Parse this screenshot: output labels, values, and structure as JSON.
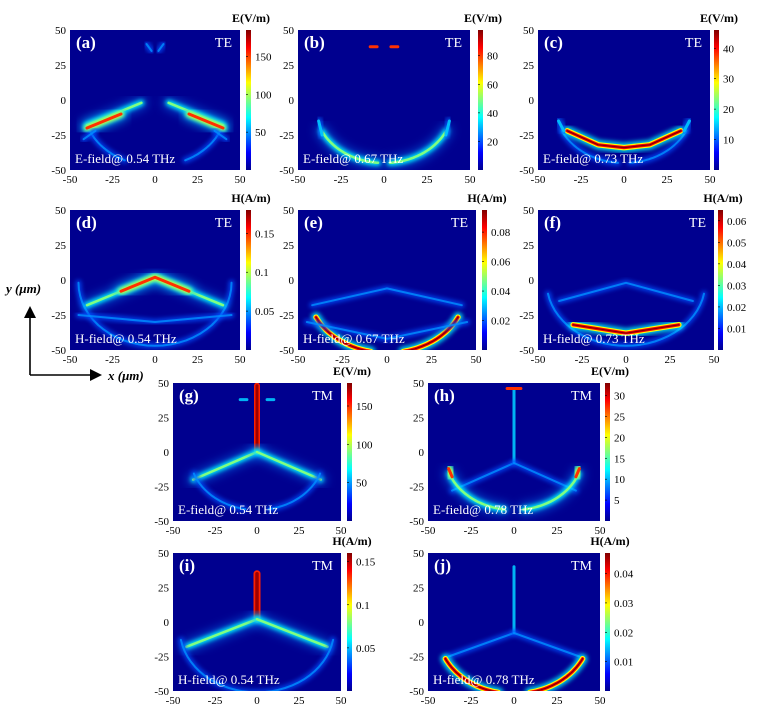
{
  "figure": {
    "axis_arrows": {
      "x_label": "x (μm)",
      "y_label": "y (μm)"
    },
    "colormap": [
      "#00008f",
      "#0000ff",
      "#0080ff",
      "#00ffff",
      "#80ff80",
      "#ffff00",
      "#ff8000",
      "#ff0000",
      "#800000"
    ]
  },
  "chart_data": [
    {
      "type": "heatmap",
      "panel": "(a)",
      "mode": "TE",
      "annotation": "E-field@ 0.54 THz",
      "colorbar_title": "E(V/m)",
      "colorbar_ticks": [
        "150",
        "100",
        "50"
      ],
      "colorbar_range": [
        0,
        185
      ],
      "xlim": [
        -50,
        50
      ],
      "ylim": [
        -50,
        50
      ],
      "x_ticks": [
        "-50",
        "-25",
        "0",
        "25",
        "50"
      ],
      "y_ticks": [
        "50",
        "25",
        "0",
        "-25",
        "-50"
      ],
      "pattern": "E054TE"
    },
    {
      "type": "heatmap",
      "panel": "(b)",
      "mode": "TE",
      "annotation": "E-field@ 0.67 THz",
      "colorbar_title": "E(V/m)",
      "colorbar_ticks": [
        "80",
        "60",
        "40",
        "20"
      ],
      "colorbar_range": [
        0,
        98
      ],
      "xlim": [
        -50,
        50
      ],
      "ylim": [
        -50,
        50
      ],
      "x_ticks": [
        "-50",
        "-25",
        "0",
        "25",
        "50"
      ],
      "y_ticks": [
        "50",
        "25",
        "0",
        "-25",
        "-50"
      ],
      "pattern": "E067TE"
    },
    {
      "type": "heatmap",
      "panel": "(c)",
      "mode": "TE",
      "annotation": "E-field@ 0.73 THz",
      "colorbar_title": "E(V/m)",
      "colorbar_ticks": [
        "40",
        "30",
        "20",
        "10"
      ],
      "colorbar_range": [
        0,
        46
      ],
      "xlim": [
        -50,
        50
      ],
      "ylim": [
        -50,
        50
      ],
      "x_ticks": [
        "-50",
        "-25",
        "0",
        "25",
        "50"
      ],
      "y_ticks": [
        "50",
        "25",
        "0",
        "-25",
        "-50"
      ],
      "pattern": "E073TE"
    },
    {
      "type": "heatmap",
      "panel": "(d)",
      "mode": "TE",
      "annotation": "H-field@ 0.54 THz",
      "colorbar_title": "H(A/m)",
      "colorbar_ticks": [
        "0.15",
        "0.1",
        "0.05"
      ],
      "colorbar_range": [
        0,
        0.18
      ],
      "xlim": [
        -50,
        50
      ],
      "ylim": [
        -50,
        50
      ],
      "x_ticks": [
        "-50",
        "-25",
        "0",
        "25",
        "50"
      ],
      "y_ticks": [
        "50",
        "25",
        "0",
        "-25",
        "-50"
      ],
      "pattern": "H054TE"
    },
    {
      "type": "heatmap",
      "panel": "(e)",
      "mode": "TE",
      "annotation": "H-field@ 0.67 THz",
      "colorbar_title": "H(A/m)",
      "colorbar_ticks": [
        "0.08",
        "0.06",
        "0.04",
        "0.02"
      ],
      "colorbar_range": [
        0,
        0.095
      ],
      "xlim": [
        -50,
        50
      ],
      "ylim": [
        -50,
        50
      ],
      "x_ticks": [
        "-50",
        "-25",
        "0",
        "25",
        "50"
      ],
      "y_ticks": [
        "50",
        "25",
        "0",
        "-25",
        "-50"
      ],
      "pattern": "H067TE"
    },
    {
      "type": "heatmap",
      "panel": "(f)",
      "mode": "TE",
      "annotation": "H-field@ 0.73 THz",
      "colorbar_title": "H(A/m)",
      "colorbar_ticks": [
        "0.06",
        "0.05",
        "0.04",
        "0.03",
        "0.02",
        "0.01"
      ],
      "colorbar_range": [
        0,
        0.065
      ],
      "xlim": [
        -50,
        50
      ],
      "ylim": [
        -50,
        50
      ],
      "x_ticks": [
        "-50",
        "-25",
        "0",
        "25",
        "50"
      ],
      "y_ticks": [
        "50",
        "25",
        "0",
        "-25",
        "-50"
      ],
      "pattern": "H073TE"
    },
    {
      "type": "heatmap",
      "panel": "(g)",
      "mode": "TM",
      "annotation": "E-field@ 0.54 THz",
      "colorbar_title": "E(V/m)",
      "colorbar_ticks": [
        "150",
        "100",
        "50"
      ],
      "colorbar_range": [
        0,
        180
      ],
      "xlim": [
        -50,
        50
      ],
      "ylim": [
        -50,
        50
      ],
      "x_ticks": [
        "-50",
        "-25",
        "0",
        "25",
        "50"
      ],
      "y_ticks": [
        "50",
        "25",
        "0",
        "-25",
        "-50"
      ],
      "pattern": "E054TM"
    },
    {
      "type": "heatmap",
      "panel": "(h)",
      "mode": "TM",
      "annotation": "E-field@ 0.78 THz",
      "colorbar_title": "E(V/m)",
      "colorbar_ticks": [
        "30",
        "25",
        "20",
        "15",
        "10",
        "5"
      ],
      "colorbar_range": [
        0,
        33
      ],
      "xlim": [
        -50,
        50
      ],
      "ylim": [
        -50,
        50
      ],
      "x_ticks": [
        "-50",
        "-25",
        "0",
        "25",
        "50"
      ],
      "y_ticks": [
        "50",
        "25",
        "0",
        "-25",
        "-50"
      ],
      "pattern": "E078TM"
    },
    {
      "type": "heatmap",
      "panel": "(i)",
      "mode": "TM",
      "annotation": "H-field@ 0.54 THz",
      "colorbar_title": "H(A/m)",
      "colorbar_ticks": [
        "0.15",
        "0.1",
        "0.05"
      ],
      "colorbar_range": [
        0,
        0.16
      ],
      "xlim": [
        -50,
        50
      ],
      "ylim": [
        -50,
        50
      ],
      "x_ticks": [
        "-50",
        "-25",
        "0",
        "25",
        "50"
      ],
      "y_ticks": [
        "50",
        "25",
        "0",
        "-25",
        "-50"
      ],
      "pattern": "H054TM"
    },
    {
      "type": "heatmap",
      "panel": "(j)",
      "mode": "TM",
      "annotation": "H-field@ 0.78 THz",
      "colorbar_title": "H(A/m)",
      "colorbar_ticks": [
        "0.04",
        "0.03",
        "0.02",
        "0.01"
      ],
      "colorbar_range": [
        0,
        0.047
      ],
      "xlim": [
        -50,
        50
      ],
      "ylim": [
        -50,
        50
      ],
      "x_ticks": [
        "-50",
        "-25",
        "0",
        "25",
        "50"
      ],
      "y_ticks": [
        "50",
        "25",
        "0",
        "-25",
        "-50"
      ],
      "pattern": "H078TM"
    }
  ]
}
